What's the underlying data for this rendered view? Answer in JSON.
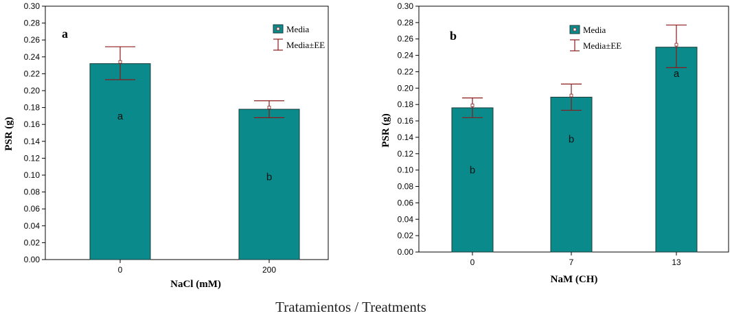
{
  "figure_caption": "Tratamientos / Treatments",
  "colors": {
    "bar": "#0a8a8a",
    "bar_stroke": "#1e3a3a",
    "error": "#8b1a1a",
    "axis": "#000000"
  },
  "chart_data": [
    {
      "type": "bar",
      "panel_label": "a",
      "categories": [
        "0",
        "200"
      ],
      "values": [
        0.232,
        0.178
      ],
      "error_upper": [
        0.252,
        0.188
      ],
      "error_lower": [
        0.213,
        0.168
      ],
      "mean_markers": [
        0.234,
        0.18
      ],
      "significance_letters": [
        "a",
        "b"
      ],
      "letter_y": [
        0.17,
        0.098
      ],
      "xlabel": "NaCl (mM)",
      "ylabel": "PSR (g)",
      "ylim": [
        0,
        0.3
      ],
      "yticks": [
        "0.00",
        "0.02",
        "0.04",
        "0.06",
        "0.08",
        "0.10",
        "0.12",
        "0.14",
        "0.16",
        "0.18",
        "0.20",
        "0.22",
        "0.24",
        "0.26",
        "0.28",
        "0.30"
      ],
      "legend": [
        "Media",
        "Media±EE"
      ],
      "legend_position": "top-right"
    },
    {
      "type": "bar",
      "panel_label": "b",
      "categories": [
        "0",
        "7",
        "13"
      ],
      "values": [
        0.176,
        0.189,
        0.25
      ],
      "error_upper": [
        0.188,
        0.205,
        0.277
      ],
      "error_lower": [
        0.164,
        0.173,
        0.225
      ],
      "mean_markers": [
        0.179,
        0.191,
        0.253
      ],
      "significance_letters": [
        "b",
        "b",
        "a"
      ],
      "letter_y": [
        0.1,
        0.138,
        0.218
      ],
      "xlabel": "NaM (CH)",
      "ylabel": "PSR (g)",
      "ylim": [
        0,
        0.3
      ],
      "yticks": [
        "0.00",
        "0.02",
        "0.04",
        "0.06",
        "0.08",
        "0.10",
        "0.12",
        "0.14",
        "0.16",
        "0.18",
        "0.20",
        "0.22",
        "0.24",
        "0.26",
        "0.28",
        "0.30"
      ],
      "legend": [
        "Media",
        "Media±EE"
      ],
      "legend_position": "top-right"
    }
  ]
}
